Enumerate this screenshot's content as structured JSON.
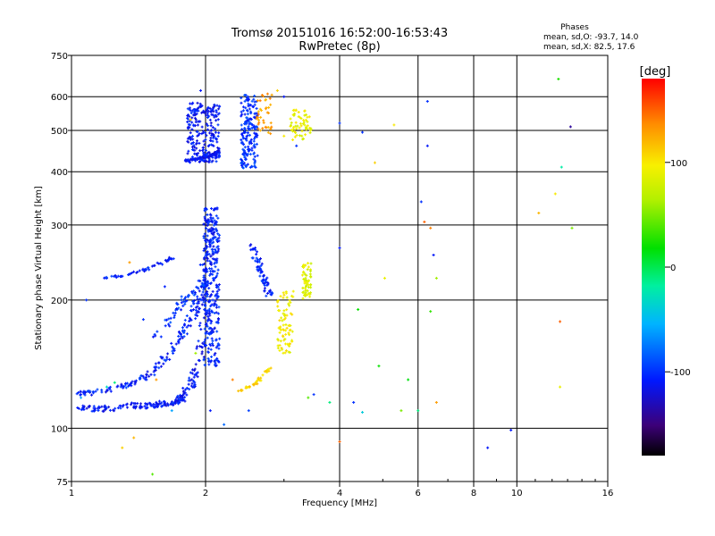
{
  "chart_data": {
    "type": "scatter",
    "title": "Tromsø 20151016 16:52:00-16:53:43",
    "subtitle": "RwPretec (8p)",
    "xlabel": "Frequency [MHz]",
    "ylabel": "Stationary phase Virtual Height [km]",
    "x_scale": "log",
    "y_scale": "log",
    "xlim": [
      1,
      16
    ],
    "ylim": [
      75,
      750
    ],
    "x_ticks": [
      1,
      2,
      4,
      6,
      8,
      10,
      16
    ],
    "x_tick_labels": [
      "1",
      "2",
      "4",
      "6",
      "8",
      "10",
      "16"
    ],
    "y_ticks": [
      75,
      100,
      200,
      300,
      400,
      500,
      600,
      750
    ],
    "y_tick_labels": [
      "75",
      "100",
      "200",
      "300",
      "400",
      "500",
      "600",
      "750"
    ],
    "grid": true,
    "stats": {
      "heading": "Phases",
      "line_o": "mean, sd,O: -93.7, 14.0",
      "line_x": "mean, sd,X:  82.5, 17.6"
    },
    "colorbar": {
      "label": "[deg]",
      "range": [
        -180,
        180
      ],
      "ticks": [
        100,
        0,
        -100
      ],
      "tick_labels": [
        "100",
        "0",
        "-100"
      ]
    },
    "series": [
      {
        "kind": "segment",
        "points": [
          [
            1.02,
            112
          ],
          [
            1.1,
            111
          ],
          [
            1.2,
            111
          ],
          [
            1.3,
            113
          ],
          [
            1.4,
            113
          ],
          [
            1.5,
            113
          ],
          [
            1.6,
            114
          ],
          [
            1.7,
            115
          ],
          [
            1.75,
            117
          ],
          [
            1.8,
            121
          ],
          [
            1.85,
            126
          ],
          [
            1.9,
            135
          ],
          [
            1.95,
            155
          ],
          [
            2.0,
            185
          ],
          [
            2.02,
            210
          ],
          [
            2.05,
            260
          ],
          [
            2.08,
            300
          ]
        ],
        "phase": -110,
        "spread": 0.05,
        "count": 260
      },
      {
        "kind": "segment",
        "points": [
          [
            1.04,
            120
          ],
          [
            1.1,
            121
          ],
          [
            1.2,
            123
          ],
          [
            1.3,
            126
          ],
          [
            1.4,
            128
          ],
          [
            1.5,
            135
          ],
          [
            1.6,
            143
          ],
          [
            1.7,
            158
          ],
          [
            1.8,
            170
          ],
          [
            1.9,
            190
          ],
          [
            1.95,
            215
          ],
          [
            2.0,
            245
          ],
          [
            2.05,
            275
          ],
          [
            2.08,
            320
          ]
        ],
        "phase": -105,
        "spread": 0.05,
        "count": 200
      },
      {
        "kind": "segment",
        "points": [
          [
            1.18,
            225
          ],
          [
            1.3,
            228
          ],
          [
            1.4,
            232
          ],
          [
            1.5,
            238
          ],
          [
            1.6,
            245
          ],
          [
            1.7,
            252
          ]
        ],
        "phase": -105,
        "spread": 0.02,
        "count": 50
      },
      {
        "kind": "segment",
        "points": [
          [
            1.55,
            165
          ],
          [
            1.65,
            180
          ],
          [
            1.75,
            195
          ],
          [
            1.85,
            205
          ],
          [
            1.95,
            210
          ],
          [
            2.0,
            220
          ]
        ],
        "phase": -100,
        "spread": 0.05,
        "count": 60
      },
      {
        "kind": "box",
        "box": [
          1.98,
          2.15,
          140,
          330
        ],
        "phase": -105,
        "count": 260
      },
      {
        "kind": "segment",
        "points": [
          [
            1.8,
            425
          ],
          [
            1.9,
            428
          ],
          [
            2.0,
            432
          ],
          [
            2.1,
            440
          ],
          [
            2.15,
            450
          ]
        ],
        "phase": -115,
        "spread": 0.015,
        "count": 90
      },
      {
        "kind": "box",
        "box": [
          1.82,
          2.15,
          420,
          580
        ],
        "phase": -110,
        "count": 240
      },
      {
        "kind": "box",
        "box": [
          2.4,
          2.62,
          405,
          610
        ],
        "phase": -100,
        "count": 180
      },
      {
        "kind": "segment",
        "points": [
          [
            2.55,
            268
          ],
          [
            2.6,
            250
          ],
          [
            2.65,
            235
          ],
          [
            2.7,
            225
          ],
          [
            2.75,
            215
          ],
          [
            2.78,
            205
          ]
        ],
        "phase": -105,
        "spread": 0.04,
        "count": 70
      },
      {
        "kind": "box",
        "box": [
          2.9,
          3.15,
          150,
          210
        ],
        "phase": 95,
        "count": 80
      },
      {
        "kind": "box",
        "box": [
          3.3,
          3.45,
          200,
          245
        ],
        "phase": 85,
        "count": 60
      },
      {
        "kind": "box",
        "box": [
          3.1,
          3.45,
          475,
          560
        ],
        "phase": 90,
        "count": 60
      },
      {
        "kind": "segment",
        "points": [
          [
            2.38,
            122
          ],
          [
            2.5,
            125
          ],
          [
            2.6,
            128
          ],
          [
            2.7,
            133
          ],
          [
            2.8,
            138
          ]
        ],
        "phase": 110,
        "spread": 0.02,
        "count": 40
      },
      {
        "kind": "box",
        "box": [
          2.6,
          2.82,
          490,
          610
        ],
        "phase": 130,
        "count": 40
      },
      {
        "kind": "points",
        "xy": [
          [
            1.35,
            245
          ],
          [
            1.62,
            215
          ],
          [
            1.45,
            180
          ],
          [
            1.38,
            95
          ],
          [
            1.52,
            78
          ],
          [
            1.3,
            90
          ],
          [
            1.68,
            110
          ],
          [
            1.2,
            125
          ],
          [
            1.25,
            128
          ],
          [
            1.9,
            150
          ],
          [
            2.3,
            130
          ],
          [
            2.5,
            110
          ],
          [
            3.4,
            118
          ],
          [
            3.8,
            115
          ],
          [
            4.0,
            265
          ],
          [
            4.5,
            495
          ],
          [
            4.8,
            420
          ],
          [
            4.0,
            520
          ],
          [
            5.05,
            225
          ],
          [
            5.3,
            515
          ],
          [
            5.5,
            110
          ],
          [
            5.7,
            130
          ],
          [
            6.0,
            110
          ],
          [
            6.1,
            340
          ],
          [
            6.2,
            305
          ],
          [
            6.3,
            460
          ],
          [
            6.4,
            295
          ],
          [
            6.5,
            255
          ],
          [
            6.6,
            225
          ],
          [
            6.4,
            188
          ],
          [
            6.6,
            115
          ],
          [
            8.6,
            90
          ],
          [
            9.7,
            99
          ],
          [
            11.2,
            320
          ],
          [
            12.2,
            355
          ],
          [
            12.5,
            125
          ],
          [
            12.4,
            660
          ],
          [
            13.2,
            510
          ],
          [
            12.6,
            410
          ],
          [
            13.3,
            295
          ],
          [
            12.5,
            178
          ],
          [
            6.3,
            585
          ],
          [
            4.5,
            109
          ],
          [
            4.4,
            190
          ],
          [
            4.0,
            93
          ],
          [
            4.3,
            115
          ],
          [
            4.9,
            140
          ],
          [
            3.5,
            120
          ],
          [
            2.9,
            620
          ],
          [
            3.0,
            600
          ],
          [
            2.2,
            102
          ],
          [
            1.85,
            530
          ],
          [
            1.95,
            620
          ],
          [
            2.05,
            110
          ],
          [
            1.05,
            118
          ],
          [
            1.08,
            200
          ],
          [
            1.55,
            130
          ],
          [
            3.0,
            485
          ],
          [
            3.2,
            460
          ]
        ],
        "phases": [
          130,
          -105,
          -100,
          120,
          40,
          110,
          -60,
          -30,
          -10,
          60,
          140,
          -95,
          40,
          -10,
          -110,
          -100,
          110,
          -100,
          90,
          100,
          50,
          15,
          -10,
          -100,
          150,
          -110,
          140,
          -110,
          60,
          30,
          130,
          -110,
          -110,
          120,
          100,
          90,
          25,
          -140,
          -20,
          50,
          150,
          -100,
          -40,
          20,
          150,
          -100,
          20,
          -100,
          110,
          -110,
          -80,
          110,
          -110,
          -110,
          -60,
          -100,
          130,
          100,
          -100
        ]
      }
    ]
  }
}
